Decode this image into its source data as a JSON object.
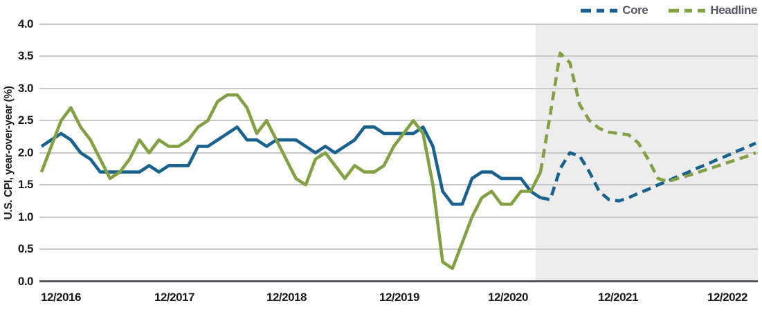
{
  "figure": {
    "type": "line-chart",
    "background": "#ffffff"
  },
  "legend": {
    "position": "top-right",
    "items": [
      {
        "label": "Core",
        "color": "#19618f"
      },
      {
        "label": "Headline",
        "color": "#82a144"
      }
    ]
  },
  "axes": {
    "y_title": "U.S. CPI, year-over-year (%)",
    "y_tick_labels": [
      "4.0",
      "3.5",
      "3.0",
      "2.5",
      "2.0",
      "1.5",
      "1.0",
      "0.5",
      "0.0"
    ],
    "x_tick_labels": [
      "12/2016",
      "12/2017",
      "12/2018",
      "12/2019",
      "12/2020",
      "12/2021",
      "12/2022"
    ]
  },
  "chart_data": {
    "type": "line",
    "title": "",
    "ylabel": "U.S. CPI, year-over-year (%)",
    "xlabel": "",
    "ylim": [
      0.0,
      4.0
    ],
    "y_tick_step": 0.5,
    "grid": "horizontal",
    "legend_position": "top-right",
    "x_frequency": "monthly",
    "x_start": "11/2016",
    "x_end": "12/2022",
    "x_tick_labels": [
      "12/2016",
      "12/2017",
      "12/2018",
      "12/2019",
      "12/2020",
      "12/2021",
      "12/2022"
    ],
    "forecast": {
      "start": "03/2021",
      "start_index": 52,
      "line_style": "dashed",
      "shaded_region": true,
      "shade_color": "#ededee"
    },
    "series": [
      {
        "name": "Core",
        "color": "#19618f",
        "values": [
          2.1,
          2.2,
          2.3,
          2.2,
          2.0,
          1.9,
          1.7,
          1.7,
          1.7,
          1.7,
          1.7,
          1.8,
          1.7,
          1.8,
          1.8,
          1.8,
          2.1,
          2.1,
          2.2,
          2.3,
          2.4,
          2.2,
          2.2,
          2.1,
          2.2,
          2.2,
          2.2,
          2.1,
          2.0,
          2.1,
          2.0,
          2.1,
          2.2,
          2.4,
          2.4,
          2.3,
          2.3,
          2.3,
          2.3,
          2.4,
          2.1,
          1.4,
          1.2,
          1.2,
          1.6,
          1.7,
          1.7,
          1.6,
          1.6,
          1.6,
          1.4,
          1.3,
          1.27,
          1.75,
          2.0,
          1.95,
          1.7,
          1.4,
          1.27,
          1.25,
          1.3,
          1.37,
          1.43,
          1.5,
          1.56,
          1.63,
          1.69,
          1.76,
          1.82,
          1.89,
          1.95,
          2.02,
          2.08,
          2.15
        ]
      },
      {
        "name": "Headline",
        "color": "#82a144",
        "values": [
          1.7,
          2.1,
          2.5,
          2.7,
          2.4,
          2.2,
          1.9,
          1.6,
          1.7,
          1.9,
          2.2,
          2.0,
          2.2,
          2.1,
          2.1,
          2.2,
          2.4,
          2.5,
          2.8,
          2.9,
          2.9,
          2.7,
          2.3,
          2.5,
          2.2,
          1.9,
          1.6,
          1.5,
          1.9,
          2.0,
          1.8,
          1.6,
          1.8,
          1.7,
          1.7,
          1.8,
          2.1,
          2.3,
          2.5,
          2.3,
          1.5,
          0.3,
          0.2,
          0.6,
          1.0,
          1.3,
          1.4,
          1.2,
          1.2,
          1.4,
          1.4,
          1.7,
          2.6,
          3.55,
          3.4,
          2.75,
          2.5,
          2.38,
          2.32,
          2.3,
          2.28,
          2.15,
          1.9,
          1.6,
          1.55,
          1.6,
          1.64,
          1.69,
          1.74,
          1.79,
          1.84,
          1.89,
          1.94,
          2.0
        ]
      }
    ]
  },
  "colors": {
    "gridline": "#c9c9c9",
    "axis_line": "#54565a",
    "tick_text": "#1b1b1b",
    "legend_text": "#5c5864",
    "forecast_shade": "#ededee"
  }
}
